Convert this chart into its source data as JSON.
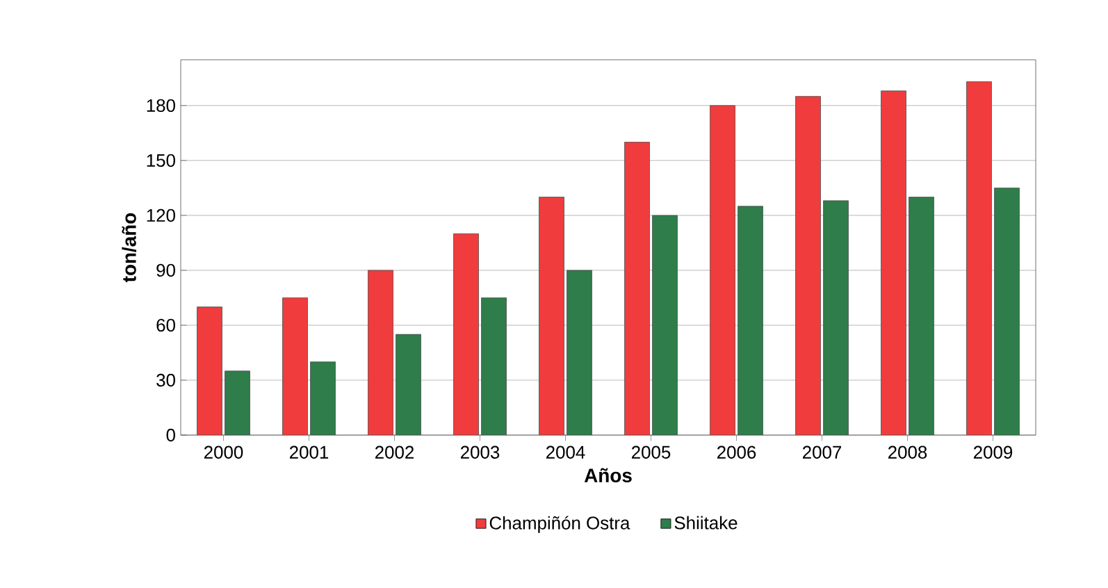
{
  "chart_data": {
    "type": "bar",
    "xlabel": "Años",
    "ylabel": "ton/año",
    "categories": [
      "2000",
      "2001",
      "2002",
      "2003",
      "2004",
      "2005",
      "2006",
      "2007",
      "2008",
      "2009"
    ],
    "series": [
      {
        "name": "Champiñón Ostra",
        "color": "#f03c3c",
        "values": [
          70,
          75,
          90,
          110,
          130,
          160,
          180,
          185,
          188,
          193
        ]
      },
      {
        "name": "Shiitake",
        "color": "#2e7d4a",
        "values": [
          35,
          40,
          55,
          75,
          90,
          120,
          125,
          128,
          130,
          135
        ]
      }
    ],
    "ylim": [
      0,
      205
    ],
    "yticks": [
      0,
      30,
      60,
      90,
      120,
      150,
      180
    ],
    "grid": "y",
    "legend": "bottom"
  }
}
